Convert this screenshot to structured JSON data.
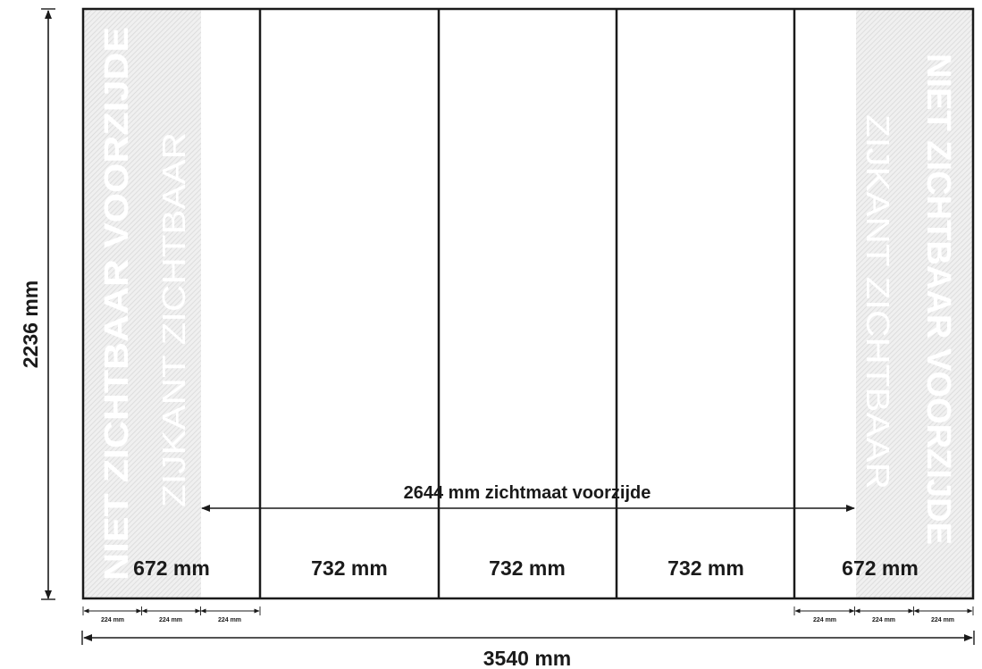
{
  "diagram": {
    "height_label": "2236 mm",
    "total_width_label": "3540 mm",
    "visible_width_label": "2644 mm zichtmaat voorzijde",
    "panels": [
      {
        "label": "672 mm"
      },
      {
        "label": "732 mm"
      },
      {
        "label": "732 mm"
      },
      {
        "label": "732 mm"
      },
      {
        "label": "672 mm"
      }
    ],
    "sub_dims_left": [
      "224 mm",
      "224 mm",
      "224 mm"
    ],
    "sub_dims_right": [
      "224 mm",
      "224 mm",
      "224 mm"
    ],
    "left_zone": {
      "line1": "NIET ZICHTBAAR VOORZIJDE",
      "line2": "ZIJKANT ZICHTBAAR"
    },
    "right_zone": {
      "line1": "NIET ZICHTBAAR VOORZIJDE",
      "line2": "ZIJKANT ZICHTBAAR"
    },
    "colors": {
      "line": "#1a1a1a",
      "hatch_light": "#f1f1f1",
      "hatch_dark": "#dcdcdc"
    }
  }
}
